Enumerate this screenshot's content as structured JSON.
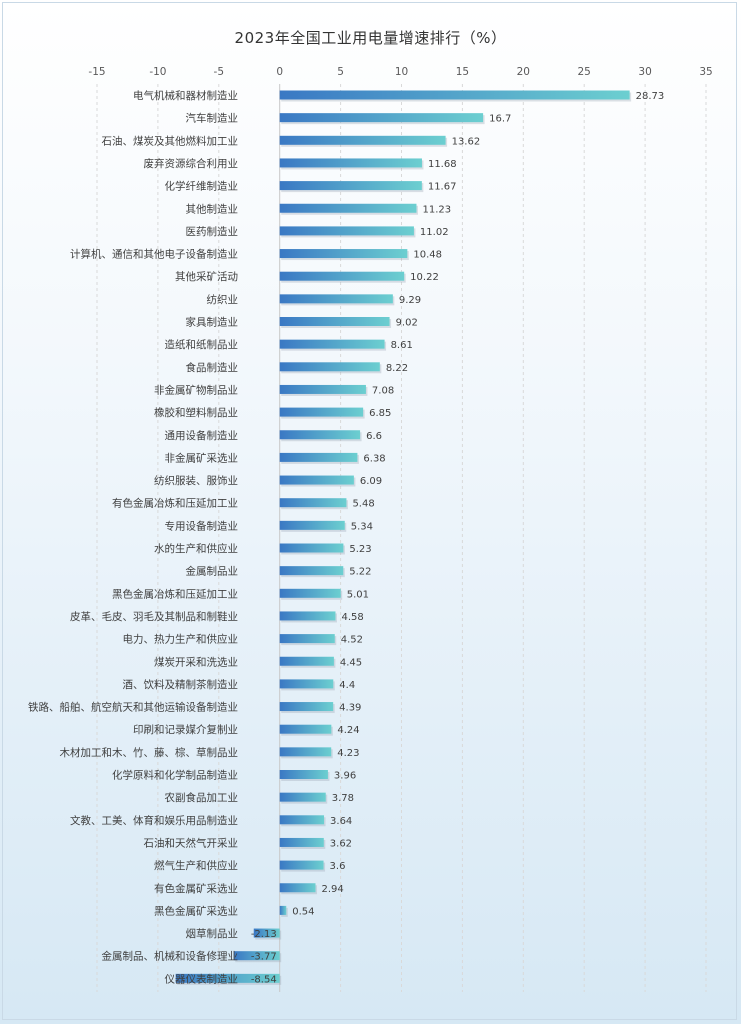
{
  "chart_data": {
    "type": "bar",
    "orientation": "horizontal",
    "title": "2023年全国工业用电量增速排行（%）",
    "xlim": [
      -15,
      35
    ],
    "xticks": [
      -15,
      -10,
      -5,
      0,
      5,
      10,
      15,
      20,
      25,
      30,
      35
    ],
    "grid": true,
    "bar_color_start": "#3a78c4",
    "bar_color_end": "#6ccfd0",
    "categories": [
      "电气机械和器材制造业",
      "汽车制造业",
      "石油、煤炭及其他燃料加工业",
      "废弃资源综合利用业",
      "化学纤维制造业",
      "其他制造业",
      "医药制造业",
      "计算机、通信和其他电子设备制造业",
      "其他采矿活动",
      "纺织业",
      "家具制造业",
      "造纸和纸制品业",
      "食品制造业",
      "非金属矿物制品业",
      "橡胶和塑料制品业",
      "通用设备制造业",
      "非金属矿采选业",
      "纺织服装、服饰业",
      "有色金属冶炼和压延加工业",
      "专用设备制造业",
      "水的生产和供应业",
      "金属制品业",
      "黑色金属冶炼和压延加工业",
      "皮革、毛皮、羽毛及其制品和制鞋业",
      "电力、热力生产和供应业",
      "煤炭开采和洗选业",
      "酒、饮料及精制茶制造业",
      "铁路、船舶、航空航天和其他运输设备制造业",
      "印刷和记录媒介复制业",
      "木材加工和木、竹、藤、棕、草制品业",
      "化学原料和化学制品制造业",
      "农副食品加工业",
      "文教、工美、体育和娱乐用品制造业",
      "石油和天然气开采业",
      "燃气生产和供应业",
      "有色金属矿采选业",
      "黑色金属矿采选业",
      "烟草制品业",
      "金属制品、机械和设备修理业",
      "仪器仪表制造业"
    ],
    "values": [
      28.73,
      16.7,
      13.62,
      11.68,
      11.67,
      11.23,
      11.02,
      10.48,
      10.22,
      9.29,
      9.02,
      8.61,
      8.22,
      7.08,
      6.85,
      6.6,
      6.38,
      6.09,
      5.48,
      5.34,
      5.23,
      5.22,
      5.01,
      4.58,
      4.52,
      4.45,
      4.4,
      4.39,
      4.24,
      4.23,
      3.96,
      3.78,
      3.64,
      3.62,
      3.6,
      2.94,
      0.54,
      -2.13,
      -3.77,
      -8.54
    ]
  }
}
